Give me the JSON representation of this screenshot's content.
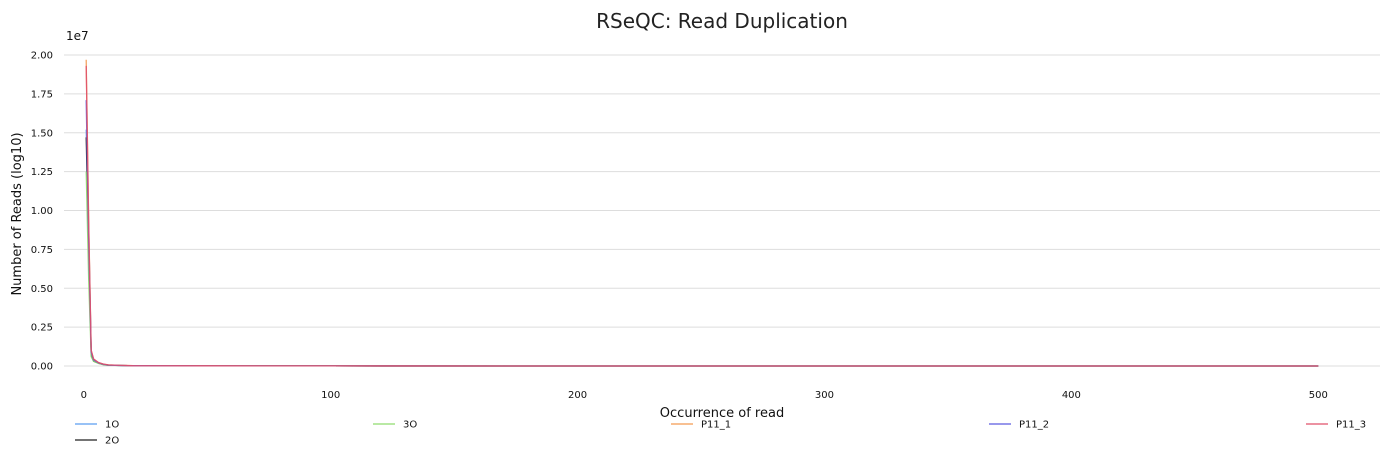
{
  "chart_data": {
    "type": "line",
    "title": "RSeQC: Read Duplication",
    "xlabel": "Occurrence of read",
    "ylabel": "Number of Reads (log10)",
    "y_offset_label": "1e7",
    "xlim": [
      -8,
      525
    ],
    "ylim": [
      0,
      2.0
    ],
    "x_ticks": [
      0,
      100,
      200,
      300,
      400,
      500
    ],
    "y_ticks": [
      0.0,
      0.25,
      0.5,
      0.75,
      1.0,
      1.25,
      1.5,
      1.75,
      2.0
    ],
    "x_tick_labels": [
      "0",
      "100",
      "200",
      "300",
      "400",
      "500"
    ],
    "y_tick_labels": [
      "0.00",
      "0.25",
      "0.50",
      "0.75",
      "1.00",
      "1.25",
      "1.50",
      "1.75",
      "2.00"
    ],
    "grid": true,
    "legend_position": "bottom",
    "series": [
      {
        "name": "1O",
        "color": "#5b9ef0",
        "x": [
          1,
          2,
          3,
          4,
          6,
          8,
          10,
          15,
          20,
          50,
          100,
          200,
          300,
          400,
          500
        ],
        "y": [
          1.52,
          0.88,
          0.08,
          0.035,
          0.02,
          0.01,
          0.006,
          0.003,
          0.002,
          0.0008,
          0.0004,
          0.0002,
          0.0001,
          0.0001,
          0.0001
        ]
      },
      {
        "name": "2O",
        "color": "#222222",
        "x": [
          1,
          2,
          3,
          4,
          6,
          8,
          10,
          15,
          20,
          50,
          100,
          200,
          300,
          400,
          500
        ],
        "y": [
          1.47,
          0.75,
          0.07,
          0.03,
          0.018,
          0.009,
          0.005,
          0.003,
          0.002,
          0.0008,
          0.0004,
          0.0002,
          0.0001,
          0.0001,
          0.0001
        ]
      },
      {
        "name": "3O",
        "color": "#8fdc6e",
        "x": [
          1,
          2,
          3,
          4,
          6,
          8,
          10,
          15,
          20,
          50,
          100,
          200,
          300,
          400,
          500
        ],
        "y": [
          1.25,
          0.55,
          0.06,
          0.03,
          0.016,
          0.008,
          0.005,
          0.003,
          0.002,
          0.0008,
          0.0004,
          0.0002,
          0.0001,
          0.0001,
          0.0001
        ]
      },
      {
        "name": "P11_1",
        "color": "#f39a52",
        "x": [
          1,
          2,
          3,
          4,
          6,
          8,
          10,
          15,
          20,
          50,
          100,
          200,
          300,
          400,
          500
        ],
        "y": [
          1.97,
          0.92,
          0.1,
          0.045,
          0.022,
          0.012,
          0.007,
          0.004,
          0.002,
          0.001,
          0.0005,
          0.0002,
          0.0001,
          0.0001,
          0.0001
        ]
      },
      {
        "name": "P11_2",
        "color": "#5b5be0",
        "x": [
          1,
          2,
          3,
          4,
          6,
          8,
          10,
          15,
          20,
          50,
          100,
          200,
          300,
          400,
          500
        ],
        "y": [
          1.71,
          0.8,
          0.09,
          0.04,
          0.02,
          0.01,
          0.006,
          0.003,
          0.002,
          0.0008,
          0.0004,
          0.0002,
          0.0001,
          0.0001,
          0.0001
        ]
      },
      {
        "name": "P11_3",
        "color": "#e0506a",
        "x": [
          1,
          2,
          3,
          4,
          6,
          8,
          10,
          15,
          20,
          50,
          100,
          200,
          300,
          400,
          500
        ],
        "y": [
          1.93,
          0.9,
          0.1,
          0.045,
          0.022,
          0.012,
          0.007,
          0.004,
          0.002,
          0.001,
          0.0005,
          0.0002,
          0.0001,
          0.0001,
          0.0001
        ]
      }
    ]
  }
}
